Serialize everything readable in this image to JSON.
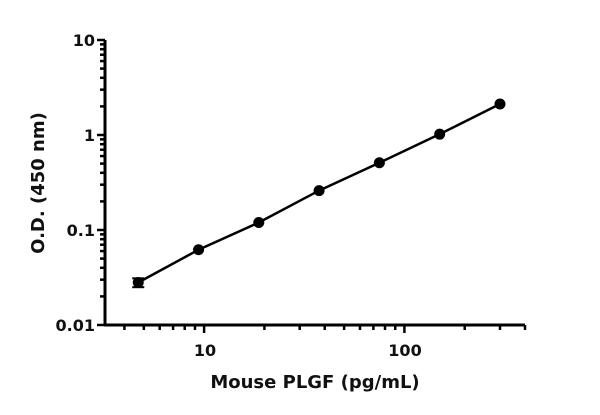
{
  "chart_data": {
    "type": "scatter",
    "title": "",
    "xlabel": "Mouse PLGF (pg/mL)",
    "ylabel": "O.D. (450 nm)",
    "xscale": "log",
    "yscale": "log",
    "xlim": [
      3.2,
      400
    ],
    "ylim": [
      0.01,
      10
    ],
    "x_tick_labels": [
      "10",
      "100"
    ],
    "y_tick_labels": [
      "10",
      "1",
      "0.1",
      "0.01"
    ],
    "grid": false,
    "legend": "none",
    "fit_line": true,
    "color": "#000000",
    "series": [
      {
        "x": [
          4.69,
          9.38,
          18.75,
          37.5,
          75,
          150,
          300
        ],
        "y": [
          0.028,
          0.062,
          0.12,
          0.26,
          0.51,
          1.02,
          2.12
        ],
        "y_error": [
          0.003,
          0,
          0,
          0,
          0,
          0,
          0
        ]
      }
    ]
  }
}
